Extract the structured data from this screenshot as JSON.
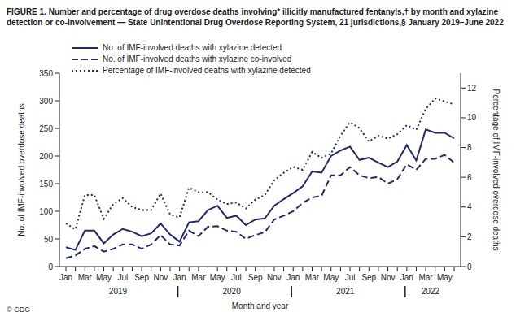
{
  "chart_data": {
    "type": "line",
    "title": "FIGURE 1. Number and percentage of drug overdose deaths involving* illicitly manufactured fentanyls,† by month and xylazine detection or co-involvement — State Unintentional Drug Overdose Reporting System, 21 jurisdictions,§ January 2019–June 2022",
    "x_label": "Month and year",
    "y_label": "No. of IMF-involved overdose deaths",
    "y2_label": "Percentage of IMF-involved overdose deaths",
    "source": "© CDC",
    "categories": [
      "Jan",
      null,
      "Mar",
      null,
      "May",
      null,
      "Jul",
      null,
      "Sep",
      null,
      "Nov",
      null,
      "Jan",
      null,
      "Mar",
      null,
      "May",
      null,
      "Jul",
      null,
      "Sep",
      null,
      "Nov",
      null,
      "Jan",
      null,
      "Mar",
      null,
      "May",
      null,
      "Jul",
      null,
      "Sep",
      null,
      "Nov",
      null,
      "Jan",
      null,
      "Mar",
      null,
      "May",
      null
    ],
    "year_labels": [
      {
        "label": "2019",
        "from": 0,
        "to": 11
      },
      {
        "label": "2020",
        "from": 12,
        "to": 23
      },
      {
        "label": "2021",
        "from": 24,
        "to": 35
      },
      {
        "label": "2022",
        "from": 36,
        "to": 41
      }
    ],
    "series": [
      {
        "name": "No. of IMF-involved deaths with xylazine detected",
        "color": "#1f2a66",
        "line_style": "solid",
        "values": [
          35,
          30,
          65,
          65,
          42,
          58,
          68,
          63,
          55,
          60,
          78,
          58,
          45,
          80,
          82,
          102,
          110,
          88,
          92,
          75,
          85,
          87,
          110,
          122,
          133,
          145,
          172,
          170,
          200,
          210,
          217,
          193,
          197,
          188,
          180,
          190,
          220,
          192,
          248,
          242,
          242,
          232
        ]
      },
      {
        "name": "No. of IMF-involved deaths with xylazine co-involved",
        "color": "#1f2a66",
        "line_style": "dashed",
        "values": [
          15,
          20,
          32,
          37,
          27,
          32,
          40,
          40,
          32,
          40,
          57,
          40,
          38,
          65,
          55,
          72,
          73,
          65,
          63,
          50,
          57,
          62,
          85,
          92,
          100,
          115,
          125,
          128,
          165,
          165,
          180,
          165,
          160,
          162,
          150,
          158,
          185,
          175,
          195,
          195,
          202,
          188
        ]
      },
      {
        "name": "Percentage of IMF-involved deaths with xylazine detected",
        "color": "#1f2a66",
        "line_style": "dotted",
        "axis": "y2",
        "values": [
          2.9,
          2.5,
          4.8,
          4.8,
          3.2,
          4.2,
          4.6,
          4.0,
          3.8,
          3.8,
          4.9,
          3.5,
          3.3,
          5.3,
          5.0,
          5.0,
          4.5,
          4.2,
          4.3,
          3.9,
          4.5,
          4.8,
          5.8,
          6.3,
          6.7,
          6.5,
          7.7,
          7.3,
          7.6,
          8.8,
          9.7,
          9.3,
          8.4,
          8.8,
          8.6,
          8.9,
          9.5,
          9.2,
          10.6,
          11.3,
          11.1,
          10.9
        ]
      }
    ],
    "ylim": [
      0,
      350
    ],
    "yticks": [
      0,
      50,
      100,
      150,
      200,
      250,
      300,
      350
    ],
    "y2lim": [
      0,
      13
    ],
    "y2ticks": [
      0,
      2,
      4,
      6,
      8,
      10,
      12
    ],
    "legend": "upper left",
    "grid": false
  }
}
